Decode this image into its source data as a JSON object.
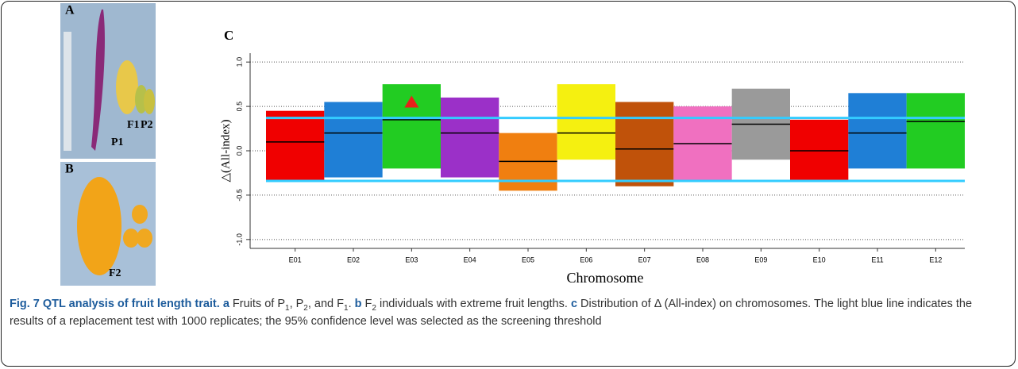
{
  "panels": {
    "a": {
      "label": "A",
      "items": [
        "P1",
        "F1",
        "P2"
      ]
    },
    "b": {
      "label": "B",
      "items": [
        "F2"
      ]
    }
  },
  "chart_data": {
    "type": "range",
    "panel_label": "C",
    "xlabel": "Chromosome",
    "ylabel": "△(All-index)",
    "categories": [
      "E01",
      "E02",
      "E03",
      "E04",
      "E05",
      "E06",
      "E07",
      "E08",
      "E09",
      "E10",
      "E11",
      "E12"
    ],
    "colors": [
      "#f00000",
      "#1f7fd6",
      "#22cc22",
      "#9b30c8",
      "#f07f10",
      "#f5f010",
      "#c0520a",
      "#f070c0",
      "#9a9a9a",
      "#f00000",
      "#1f7fd6",
      "#22cc22"
    ],
    "smoothed": [
      0.1,
      0.2,
      0.35,
      0.2,
      -0.12,
      0.2,
      0.02,
      0.08,
      0.3,
      0.0,
      0.2,
      0.33
    ],
    "low": [
      -0.35,
      -0.3,
      -0.2,
      -0.3,
      -0.45,
      -0.1,
      -0.4,
      -0.35,
      -0.1,
      -0.35,
      -0.2,
      -0.2
    ],
    "high": [
      0.45,
      0.55,
      0.75,
      0.6,
      0.2,
      0.75,
      0.55,
      0.5,
      0.7,
      0.35,
      0.65,
      0.65
    ],
    "thresholds": [
      0.37,
      -0.34
    ],
    "threshold_color": "#33ccff",
    "peak": {
      "category": 2,
      "value": 0.55,
      "color": "#e8201a"
    },
    "ylim": [
      -1.1,
      1.1
    ],
    "yticks": [
      {
        "value": 1,
        "label": "1.0"
      },
      0.5,
      {
        "value": 0,
        "label": "0.0"
      },
      -0.5,
      {
        "value": -1,
        "label": "-1.0"
      }
    ],
    "grid": true
  },
  "caption": {
    "runs": [
      {
        "text": "Fig. 7 QTL analysis of fruit length trait.",
        "style": "bold"
      },
      {
        "text": " a",
        "style": "bold"
      },
      {
        "text": " Fruits of P",
        "style": "normal"
      },
      {
        "text": "1",
        "style": "sub"
      },
      {
        "text": ", P",
        "style": "normal"
      },
      {
        "text": "2",
        "style": "sub"
      },
      {
        "text": ", and F",
        "style": "normal"
      },
      {
        "text": "1",
        "style": "sub"
      },
      {
        "text": ". ",
        "style": "normal"
      },
      {
        "text": "b",
        "style": "bold"
      },
      {
        "text": " F",
        "style": "normal"
      },
      {
        "text": "2",
        "style": "sub"
      },
      {
        "text": " individuals with extreme fruit lengths. ",
        "style": "normal"
      },
      {
        "text": "c",
        "style": "bold"
      },
      {
        "text": " Distribution of Δ (All-index) on chromosomes. The light blue line indicates the results of a replacement test with 1000 replicates; the 95% confidence level was selected as the screening threshold",
        "style": "normal"
      }
    ]
  }
}
